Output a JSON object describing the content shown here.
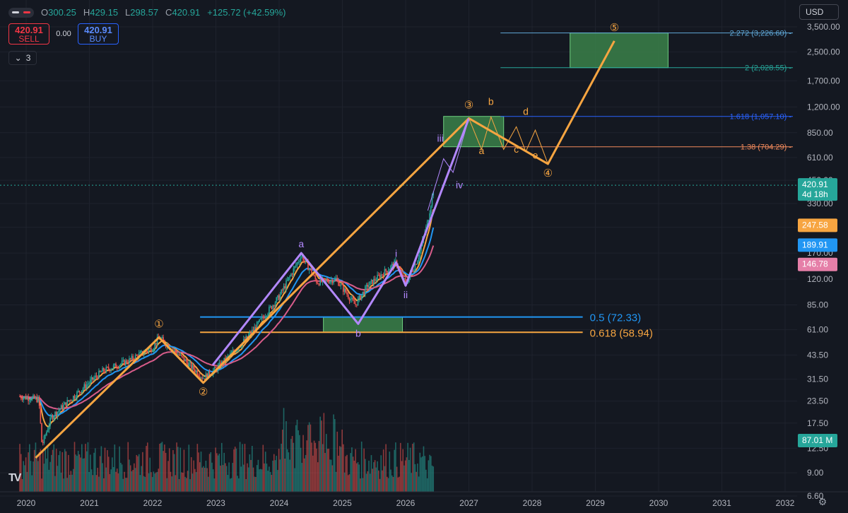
{
  "header": {
    "ohlc": [
      {
        "key": "O",
        "value": "300.25"
      },
      {
        "key": "H",
        "value": "429.15"
      },
      {
        "key": "L",
        "value": "298.57"
      },
      {
        "key": "C",
        "value": "420.91"
      }
    ],
    "change": "+125.72 (+42.59%)"
  },
  "trade": {
    "sell_price": "420.91",
    "sell_label": "SELL",
    "spread": "0.00",
    "buy_price": "420.91",
    "buy_label": "BUY"
  },
  "indicators_count": "3",
  "currency": "USD",
  "colors": {
    "background": "#141821",
    "up": "#26a69a",
    "down": "#ef5350",
    "wave_orange": "#f7a541",
    "wave_purple": "#b388ff",
    "ema_blue": "#2196f3",
    "ema_red": "#d85c8a",
    "target_green": "#3f8f4f"
  },
  "chart_data": {
    "type": "candlestick",
    "y_scale": "log",
    "y_ticks": [
      "3,500.00",
      "2,500.00",
      "1,700.00",
      "1,200.00",
      "850.00",
      "610.00",
      "450.00",
      "330.00",
      "240.00",
      "170.00",
      "120.00",
      "85.00",
      "61.00",
      "43.50",
      "31.50",
      "23.50",
      "17.50",
      "12.50",
      "9.00",
      "6.60"
    ],
    "x_ticks": [
      "2020",
      "2021",
      "2022",
      "2023",
      "2024",
      "2025",
      "2026",
      "2027",
      "2028",
      "2029",
      "2030",
      "2031",
      "2032"
    ],
    "last_price": {
      "value": "420.91",
      "countdown": "4d 18h"
    },
    "ema_labels": [
      {
        "value": "247.58",
        "color": "#f7a541"
      },
      {
        "value": "189.91",
        "color": "#2196f3"
      },
      {
        "value": "146.78",
        "color": "#e57fa8"
      }
    ],
    "volume_label": "87.01 M",
    "fib_levels": [
      {
        "text": "2.272 (3,226.60)",
        "price": 3226.6,
        "color": "#5fa8d8"
      },
      {
        "text": "2 (2,028.55)",
        "price": 2028.55,
        "color": "#26a69a"
      },
      {
        "text": "1.618 (1,057.10)",
        "price": 1057.1,
        "color": "#2962ff"
      },
      {
        "text": "1.38 (704.29)",
        "price": 704.29,
        "color": "#f28a5c"
      },
      {
        "text": "0.5 (72.33)",
        "price": 72.33,
        "color": "#2196f3"
      },
      {
        "text": "0.618 (58.94)",
        "price": 58.94,
        "color": "#f7a541"
      }
    ],
    "orange_waves": [
      {
        "label": "①",
        "date": 2022.1,
        "price": 55
      },
      {
        "label": "②",
        "date": 2022.8,
        "price": 30
      },
      {
        "label": "③",
        "date": 2027.0,
        "price": 1030
      },
      {
        "label": "④",
        "date": 2028.25,
        "price": 560
      },
      {
        "label": "⑤",
        "date": 2029.3,
        "price": 2900
      }
    ],
    "orange_path": [
      [
        2020.15,
        11
      ],
      [
        2022.1,
        55
      ],
      [
        2022.8,
        30
      ],
      [
        2027.0,
        1030
      ],
      [
        2028.25,
        560
      ],
      [
        2029.3,
        2900
      ]
    ],
    "purple_labels": [
      {
        "label": "a",
        "date": 2024.35,
        "price": 170
      },
      {
        "label": "b",
        "date": 2025.25,
        "price": 66
      },
      {
        "label": "i",
        "date": 2025.85,
        "price": 150
      },
      {
        "label": "ii",
        "date": 2026.0,
        "price": 110
      },
      {
        "label": "iii",
        "date": 2026.55,
        "price": 700
      },
      {
        "label": "iv",
        "date": 2026.85,
        "price": 480
      }
    ],
    "purple_path": [
      [
        2022.95,
        38
      ],
      [
        2024.35,
        170
      ],
      [
        2025.25,
        66
      ],
      [
        2025.85,
        150
      ],
      [
        2026.0,
        110
      ],
      [
        2027.0,
        1030
      ]
    ],
    "correction_labels": [
      {
        "label": "a",
        "date": 2027.2,
        "price": 640
      },
      {
        "label": "b",
        "date": 2027.35,
        "price": 1230
      },
      {
        "label": "c",
        "date": 2027.75,
        "price": 650
      },
      {
        "label": "d",
        "date": 2027.9,
        "price": 1080
      },
      {
        "label": "e",
        "date": 2028.05,
        "price": 600
      }
    ],
    "target_boxes": [
      {
        "x0": 2024.7,
        "x1": 2025.95,
        "top": 72.33,
        "bottom": 58.94
      },
      {
        "x0": 2026.6,
        "x1": 2027.55,
        "top": 1057.1,
        "bottom": 704.29
      },
      {
        "x0": 2028.6,
        "x1": 2030.15,
        "top": 3226.6,
        "bottom": 2028.55
      }
    ]
  }
}
